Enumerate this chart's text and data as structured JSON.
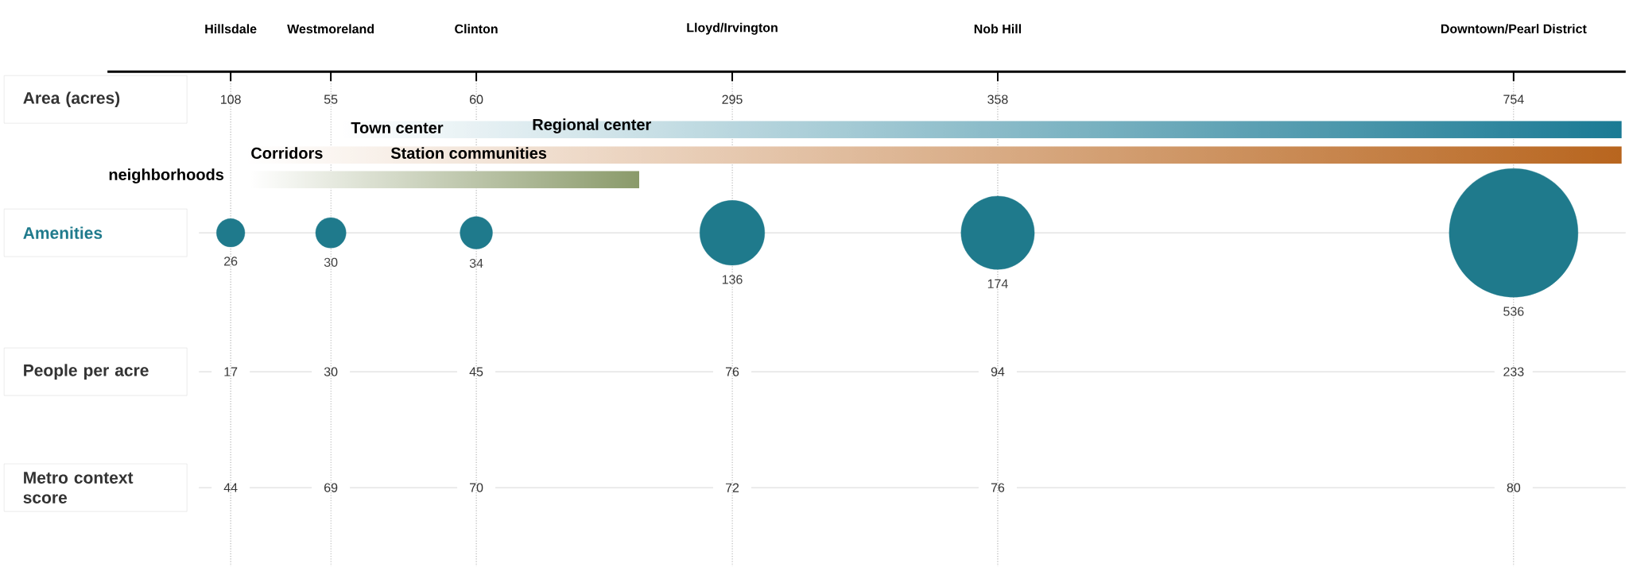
{
  "chart_data": {
    "type": "other",
    "categories": [
      "Hillsdale",
      "Westmoreland",
      "Clinton",
      "Lloyd/Irvington",
      "Nob Hill",
      "Downtown/Pearl District"
    ],
    "series": [
      {
        "name": "Area (acres)",
        "type": "other",
        "color": "#333333",
        "values": [
          108,
          55,
          60,
          295,
          358,
          754
        ]
      },
      {
        "name": "Amenities",
        "type": "bubble",
        "color": "#1f7a8c",
        "values": [
          26,
          30,
          34,
          136,
          174,
          536
        ]
      },
      {
        "name": "People per acre",
        "type": "other",
        "color": "#333333",
        "values": [
          17,
          30,
          45,
          76,
          94,
          233
        ]
      },
      {
        "name": "Metro context score",
        "type": "other",
        "color": "#333333",
        "values": [
          44,
          69,
          70,
          72,
          76,
          80
        ]
      }
    ],
    "annotations": [
      "Town center",
      "Regional center",
      "Corridors",
      "Station communities",
      "neighborhoods"
    ],
    "data_labels": true
  }
}
